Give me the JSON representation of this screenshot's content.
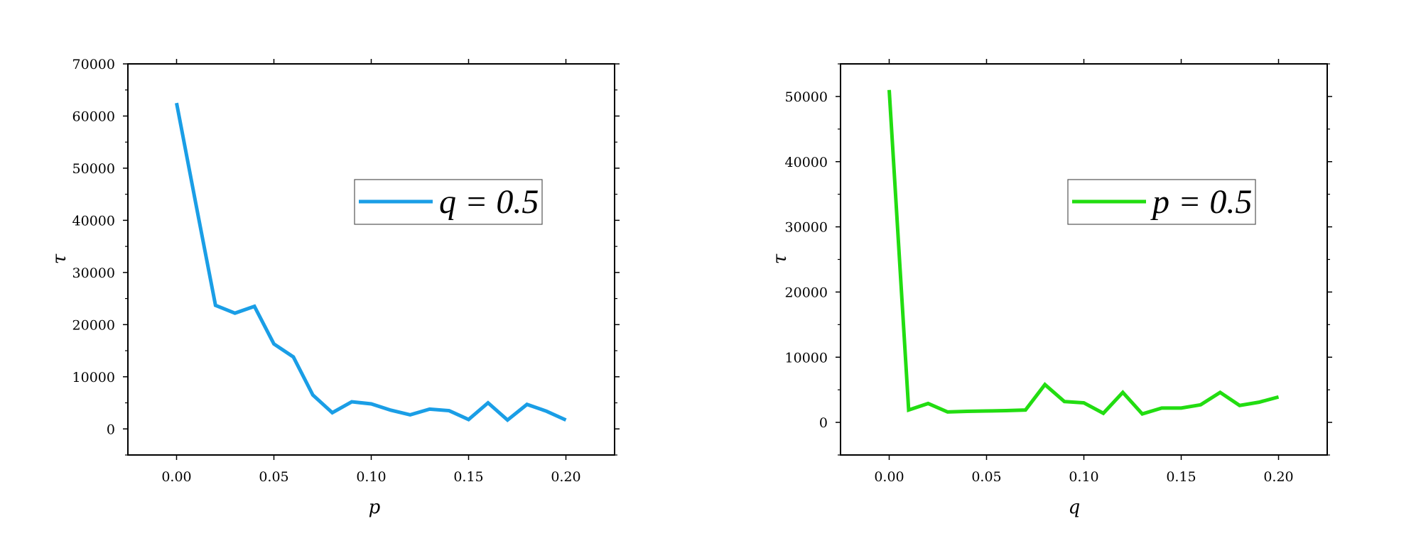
{
  "chart_data": [
    {
      "type": "line",
      "xlabel": "p",
      "ylabel": "τ",
      "xlim": [
        -0.025,
        0.225
      ],
      "ylim": [
        -5000,
        70000
      ],
      "xticks": [
        0.0,
        0.05,
        0.1,
        0.15,
        0.2
      ],
      "xtick_labels": [
        "0.00",
        "0.05",
        "0.10",
        "0.15",
        "0.20"
      ],
      "yticks": [
        0,
        10000,
        20000,
        30000,
        40000,
        50000,
        60000,
        70000
      ],
      "ytick_labels": [
        "0",
        "10000",
        "20000",
        "30000",
        "40000",
        "50000",
        "60000",
        "70000"
      ],
      "grid": false,
      "legend_position": "upper-right",
      "series": [
        {
          "name": "q = 0.5",
          "color": "#1a9ee6",
          "x": [
            0.0,
            0.01,
            0.02,
            0.03,
            0.04,
            0.05,
            0.06,
            0.07,
            0.08,
            0.09,
            0.1,
            0.11,
            0.12,
            0.13,
            0.14,
            0.15,
            0.16,
            0.17,
            0.18,
            0.19,
            0.2
          ],
          "y": [
            62500,
            43000,
            23700,
            22200,
            23500,
            16300,
            13800,
            6500,
            3100,
            5200,
            4800,
            3600,
            2700,
            3800,
            3500,
            1800,
            5000,
            1700,
            4700,
            3400,
            1700
          ]
        }
      ]
    },
    {
      "type": "line",
      "xlabel": "q",
      "ylabel": "τ",
      "xlim": [
        -0.025,
        0.225
      ],
      "ylim": [
        -5000,
        55000
      ],
      "xticks": [
        0.0,
        0.05,
        0.1,
        0.15,
        0.2
      ],
      "xtick_labels": [
        "0.00",
        "0.05",
        "0.10",
        "0.15",
        "0.20"
      ],
      "yticks": [
        0,
        10000,
        20000,
        30000,
        40000,
        50000
      ],
      "ytick_labels": [
        "0",
        "10000",
        "20000",
        "30000",
        "40000",
        "50000"
      ],
      "grid": false,
      "legend_position": "upper-right",
      "series": [
        {
          "name": "p = 0.5",
          "color": "#22dd11",
          "x": [
            0.0,
            0.01,
            0.02,
            0.03,
            0.04,
            0.05,
            0.06,
            0.07,
            0.08,
            0.09,
            0.1,
            0.11,
            0.12,
            0.13,
            0.14,
            0.15,
            0.16,
            0.17,
            0.18,
            0.19,
            0.2
          ],
          "y": [
            51000,
            1900,
            2900,
            1600,
            1700,
            1750,
            1800,
            1900,
            5800,
            3200,
            3000,
            1400,
            4600,
            1300,
            2200,
            2200,
            2700,
            4600,
            2600,
            3100,
            3900
          ]
        }
      ]
    }
  ]
}
